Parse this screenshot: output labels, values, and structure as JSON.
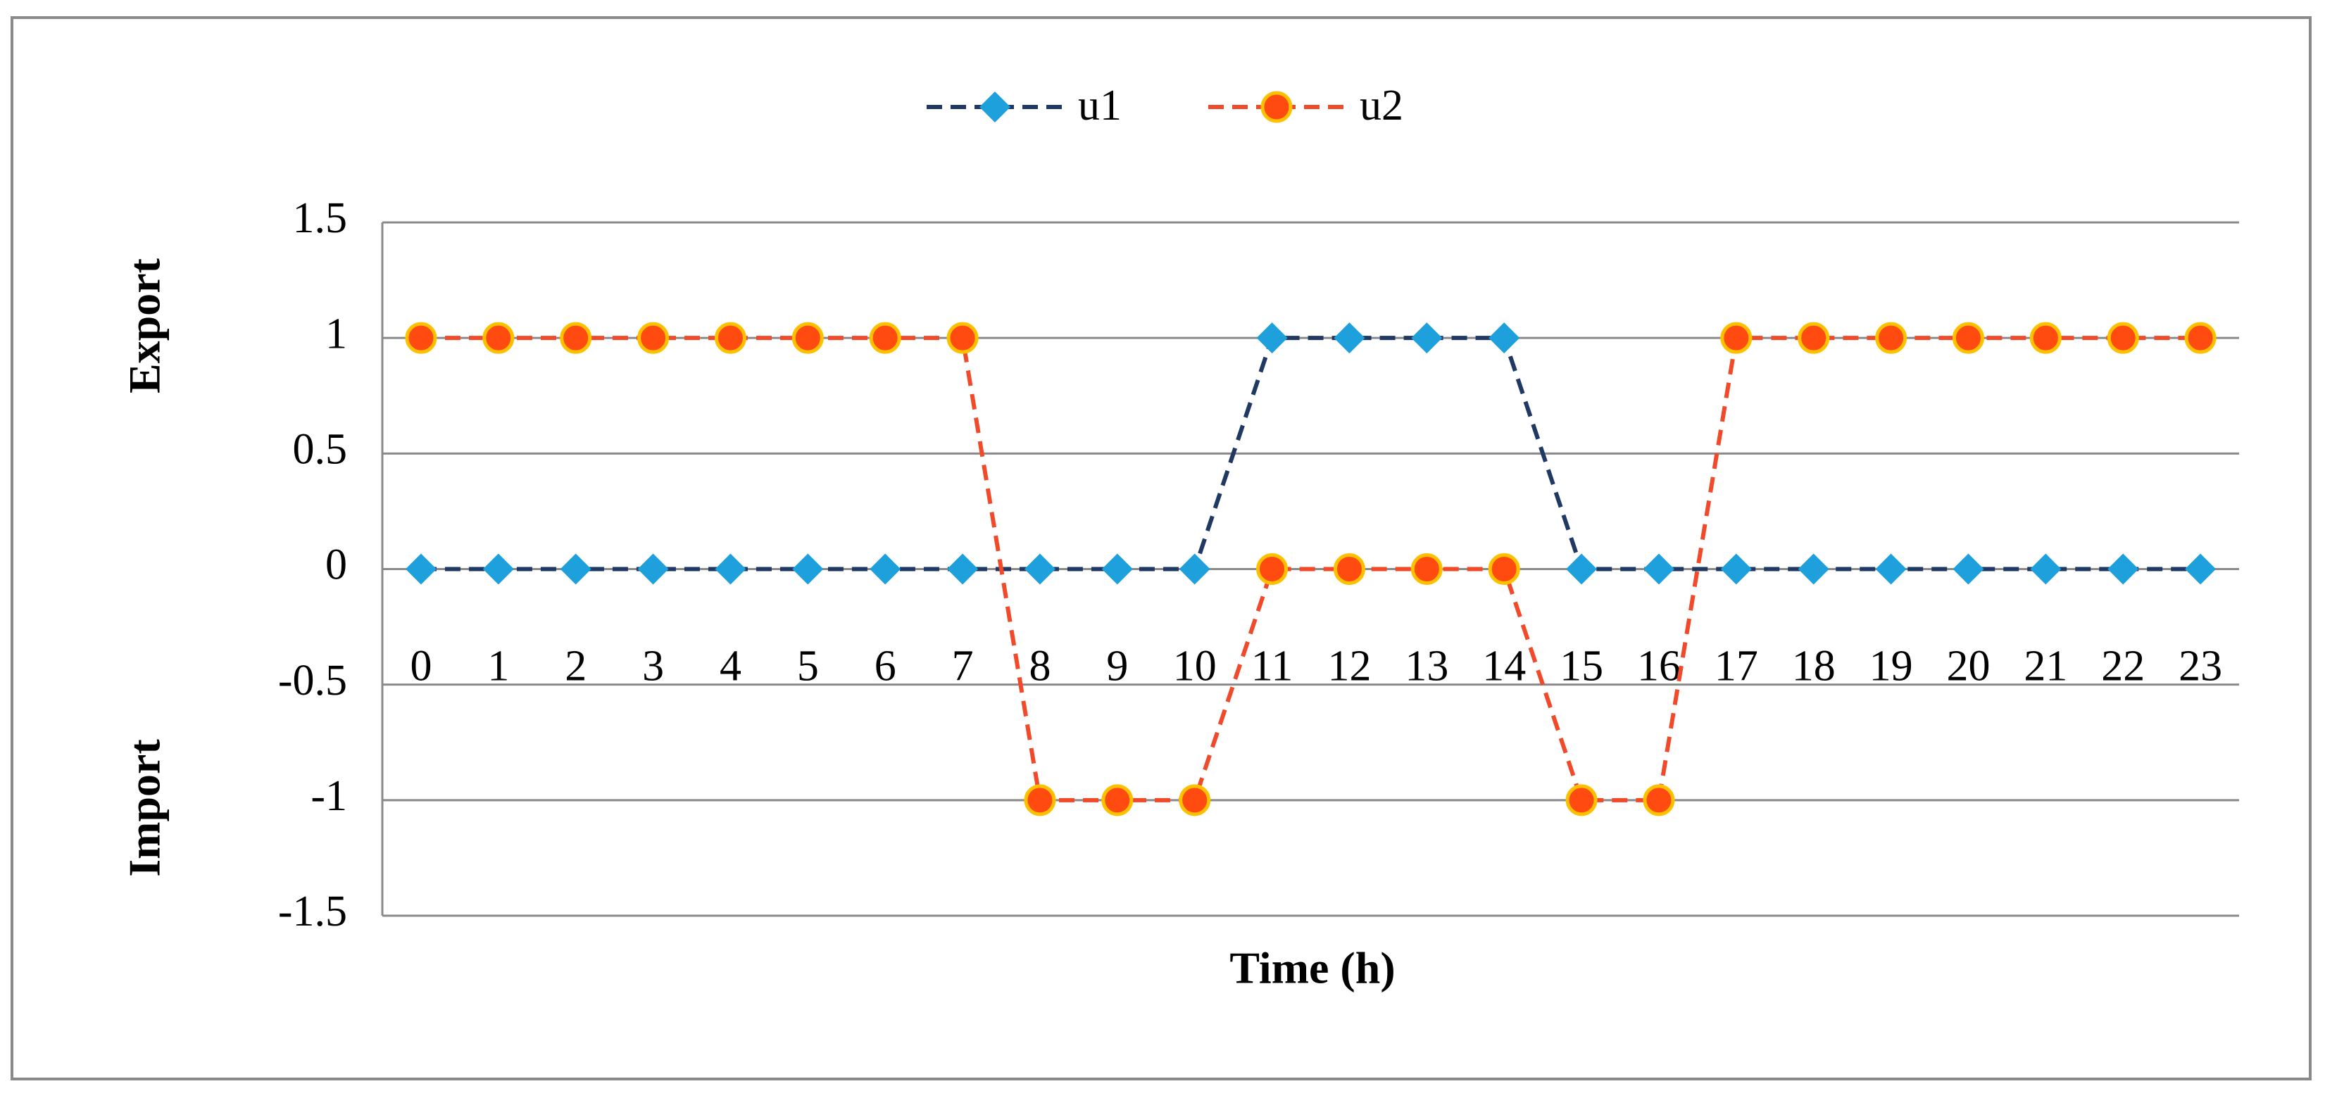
{
  "chart_data": {
    "type": "line",
    "x_label": "Time (h)",
    "y_label_upper": "Export",
    "y_label_lower": "Import",
    "categories": [
      "0",
      "1",
      "2",
      "3",
      "4",
      "5",
      "6",
      "7",
      "8",
      "9",
      "10",
      "11",
      "12",
      "13",
      "14",
      "15",
      "16",
      "17",
      "18",
      "19",
      "20",
      "21",
      "22",
      "23"
    ],
    "series": [
      {
        "name": "u1",
        "color": "#1f3864",
        "marker_color": "#1ea0dc",
        "marker": "diamond",
        "values": [
          0,
          0,
          0,
          0,
          0,
          0,
          0,
          0,
          0,
          0,
          0,
          1,
          1,
          1,
          1,
          0,
          0,
          0,
          0,
          0,
          0,
          0,
          0,
          0
        ]
      },
      {
        "name": "u2",
        "color": "#f04a2a",
        "marker_color": "#ff4a10",
        "marker": "circle",
        "values": [
          1,
          1,
          1,
          1,
          1,
          1,
          1,
          1,
          -1,
          -1,
          -1,
          0,
          0,
          0,
          0,
          -1,
          -1,
          1,
          1,
          1,
          1,
          1,
          1,
          1
        ]
      }
    ],
    "ylim": [
      -1.5,
      1.5
    ],
    "yticks": [
      -1.5,
      -1,
      -0.5,
      0,
      0.5,
      1,
      1.5
    ],
    "grid": true,
    "legend": "top"
  }
}
